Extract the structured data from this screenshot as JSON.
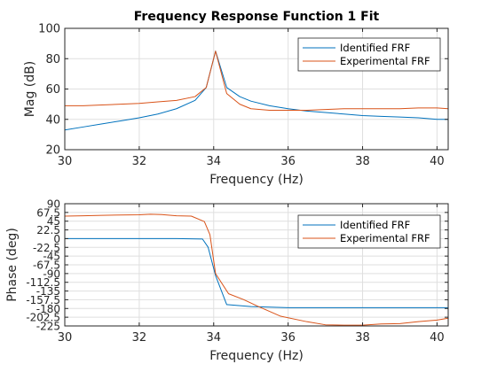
{
  "chart_data": [
    {
      "type": "line",
      "title": "Frequency Response Function 1 Fit",
      "xlabel": "Frequency (Hz)",
      "ylabel": "Mag (dB)",
      "xlim": [
        30,
        40.3
      ],
      "ylim": [
        20,
        100
      ],
      "xticks": [
        30,
        32,
        34,
        36,
        38,
        40
      ],
      "yticks": [
        20,
        40,
        60,
        80,
        100
      ],
      "ytick_labels": [
        "20",
        "40",
        "60",
        "80",
        "100"
      ],
      "grid": true,
      "legend_position": "top-right",
      "series": [
        {
          "name": "Identified FRF",
          "color": "#0072BD",
          "x": [
            30,
            30.5,
            31,
            31.5,
            32,
            32.5,
            33,
            33.5,
            33.8,
            34.05,
            34.35,
            34.7,
            35,
            35.5,
            36,
            36.5,
            37,
            37.5,
            38,
            38.5,
            39,
            39.5,
            40,
            40.3
          ],
          "y": [
            33,
            35,
            37,
            39,
            41,
            43.5,
            47,
            52.5,
            61,
            85,
            61,
            55,
            52,
            49,
            47,
            45.5,
            44.5,
            43.5,
            42.5,
            42,
            41.5,
            41,
            40,
            40
          ]
        },
        {
          "name": "Experimental FRF",
          "color": "#D95319",
          "x": [
            30,
            30.5,
            31,
            31.5,
            32,
            32.5,
            33,
            33.5,
            33.8,
            34.05,
            34.35,
            34.7,
            35,
            35.5,
            36,
            36.5,
            37,
            37.5,
            38,
            38.5,
            39,
            39.5,
            40,
            40.3
          ],
          "y": [
            49,
            49,
            49.5,
            50,
            50.5,
            51.5,
            52.5,
            55,
            61,
            85,
            57,
            50,
            47,
            46,
            46,
            46,
            46.5,
            47,
            47,
            47,
            47,
            47.5,
            47.5,
            47
          ]
        }
      ]
    },
    {
      "type": "line",
      "title": "",
      "xlabel": "Frequency (Hz)",
      "ylabel": "Phase (deg)",
      "xlim": [
        30,
        40.3
      ],
      "ylim": [
        -225,
        90
      ],
      "xticks": [
        30,
        32,
        34,
        36,
        38,
        40
      ],
      "yticks": [
        90,
        67.5,
        45,
        22.5,
        0,
        -22.5,
        -45,
        -67.5,
        -90,
        -112.5,
        -135,
        -157.5,
        -180,
        -202.5,
        -225
      ],
      "ytick_labels": [
        "90",
        "67.5",
        "45",
        "22.5",
        "0",
        "-22.5",
        "-45",
        "-67.5",
        "-90",
        "-112.5",
        "-135",
        "-157.5",
        "-180",
        "-202.5",
        "-225"
      ],
      "grid": true,
      "legend_position": "top-right",
      "series": [
        {
          "name": "Identified FRF",
          "color": "#0072BD",
          "x": [
            30,
            31,
            32,
            33,
            33.7,
            33.85,
            34.05,
            34.35,
            35,
            36,
            37,
            38,
            39,
            40,
            40.3
          ],
          "y": [
            0,
            0,
            0,
            0,
            -1,
            -22,
            -95,
            -170,
            -175,
            -178,
            -178,
            -178,
            -178,
            -178,
            -178
          ]
        },
        {
          "name": "Experimental FRF",
          "color": "#D95319",
          "x": [
            30,
            30.5,
            31,
            31.5,
            32,
            32.3,
            32.6,
            33,
            33.4,
            33.75,
            33.9,
            34.05,
            34.4,
            34.8,
            35.2,
            35.8,
            36.5,
            37,
            37.5,
            38,
            38.5,
            39,
            39.5,
            40,
            40.3
          ],
          "y": [
            58,
            59,
            60,
            61,
            61.5,
            63,
            62,
            59,
            58,
            44,
            10,
            -90,
            -142,
            -157,
            -175,
            -200,
            -214,
            -222,
            -223,
            -223,
            -220,
            -219,
            -214,
            -210,
            -205
          ]
        }
      ]
    }
  ]
}
